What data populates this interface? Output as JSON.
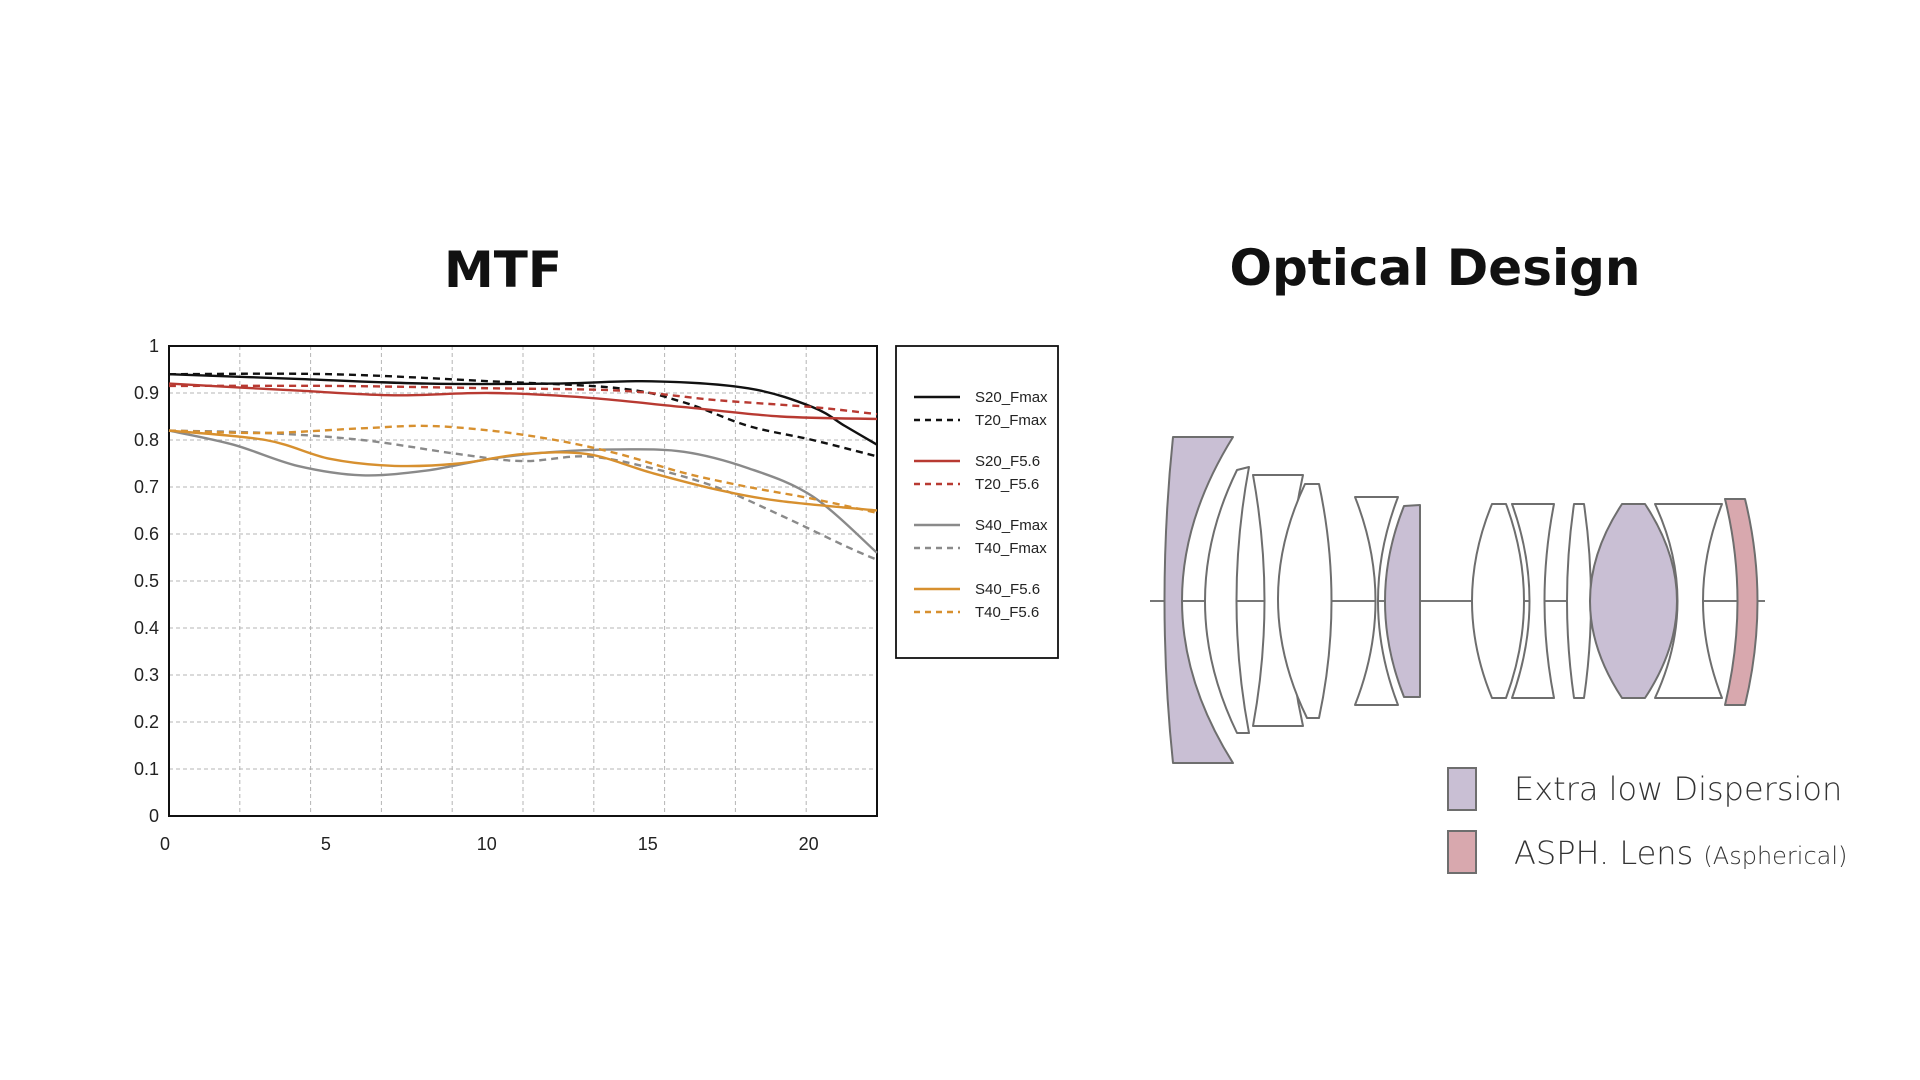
{
  "mtf": {
    "title": "MTF"
  },
  "optical_design": {
    "title": "Optical Design",
    "legend": [
      {
        "label": "Extra low Dispersion",
        "note": "",
        "color": "#c9bfd4"
      },
      {
        "label": "ASPH. Lens ",
        "note": "(Aspherical)",
        "color": "#d8a8ae"
      }
    ],
    "colors": {
      "outline": "#6e6e6e",
      "axis": "#777777",
      "ed_fill": "#c9bfd4",
      "asph_fill": "#d8a8ae"
    }
  },
  "chart_data": {
    "type": "line",
    "title": "MTF",
    "xlabel": "",
    "ylabel": "",
    "xlim": [
      0,
      22
    ],
    "ylim": [
      0,
      1
    ],
    "xticks": [
      "0",
      "5",
      "10",
      "15",
      "20"
    ],
    "yticks": [
      "0",
      "0.1",
      "0.2",
      "0.3",
      "0.4",
      "0.5",
      "0.6",
      "0.7",
      "0.8",
      "0.9",
      "1"
    ],
    "grid": true,
    "legend_position": "right",
    "series": [
      {
        "name": "S20_Fmax",
        "color": "#111111",
        "dash": false,
        "x": [
          0,
          4,
          8,
          12,
          15,
          18,
          20,
          21,
          22
        ],
        "y": [
          0.94,
          0.93,
          0.92,
          0.92,
          0.925,
          0.91,
          0.87,
          0.83,
          0.79
        ]
      },
      {
        "name": "T20_Fmax",
        "color": "#111111",
        "dash": true,
        "x": [
          0,
          5,
          10,
          14,
          16,
          18,
          20,
          22
        ],
        "y": [
          0.94,
          0.94,
          0.925,
          0.91,
          0.88,
          0.83,
          0.8,
          0.765
        ]
      },
      {
        "name": "S20_F5.6",
        "color": "#b83a32",
        "dash": false,
        "x": [
          0,
          4,
          7,
          10,
          13,
          16,
          19,
          22
        ],
        "y": [
          0.92,
          0.905,
          0.895,
          0.9,
          0.89,
          0.87,
          0.85,
          0.845
        ]
      },
      {
        "name": "T20_F5.6",
        "color": "#b83a32",
        "dash": true,
        "x": [
          0,
          5,
          10,
          14,
          17,
          20,
          22
        ],
        "y": [
          0.915,
          0.915,
          0.91,
          0.905,
          0.885,
          0.87,
          0.855
        ]
      },
      {
        "name": "S40_Fmax",
        "color": "#8a8a8a",
        "dash": false,
        "x": [
          0,
          2,
          4,
          6,
          8,
          10,
          12,
          14,
          16,
          18,
          20,
          22
        ],
        "y": [
          0.82,
          0.79,
          0.745,
          0.725,
          0.735,
          0.76,
          0.775,
          0.78,
          0.775,
          0.74,
          0.68,
          0.56
        ]
      },
      {
        "name": "T40_Fmax",
        "color": "#8a8a8a",
        "dash": true,
        "x": [
          0,
          3,
          6,
          9,
          11,
          13,
          15,
          17,
          19,
          21,
          22
        ],
        "y": [
          0.82,
          0.815,
          0.8,
          0.77,
          0.755,
          0.765,
          0.74,
          0.7,
          0.64,
          0.575,
          0.545
        ]
      },
      {
        "name": "S40_F5.6",
        "color": "#d7902f",
        "dash": false,
        "x": [
          0,
          3,
          5,
          7,
          9,
          11,
          13,
          15,
          17,
          19,
          22
        ],
        "y": [
          0.82,
          0.8,
          0.76,
          0.745,
          0.75,
          0.77,
          0.77,
          0.73,
          0.695,
          0.67,
          0.65
        ]
      },
      {
        "name": "T40_F5.6",
        "color": "#d7902f",
        "dash": true,
        "x": [
          0,
          3,
          6,
          8,
          10,
          12,
          14,
          16,
          18,
          20,
          22
        ],
        "y": [
          0.82,
          0.815,
          0.825,
          0.83,
          0.82,
          0.8,
          0.77,
          0.73,
          0.7,
          0.675,
          0.645
        ]
      }
    ]
  }
}
